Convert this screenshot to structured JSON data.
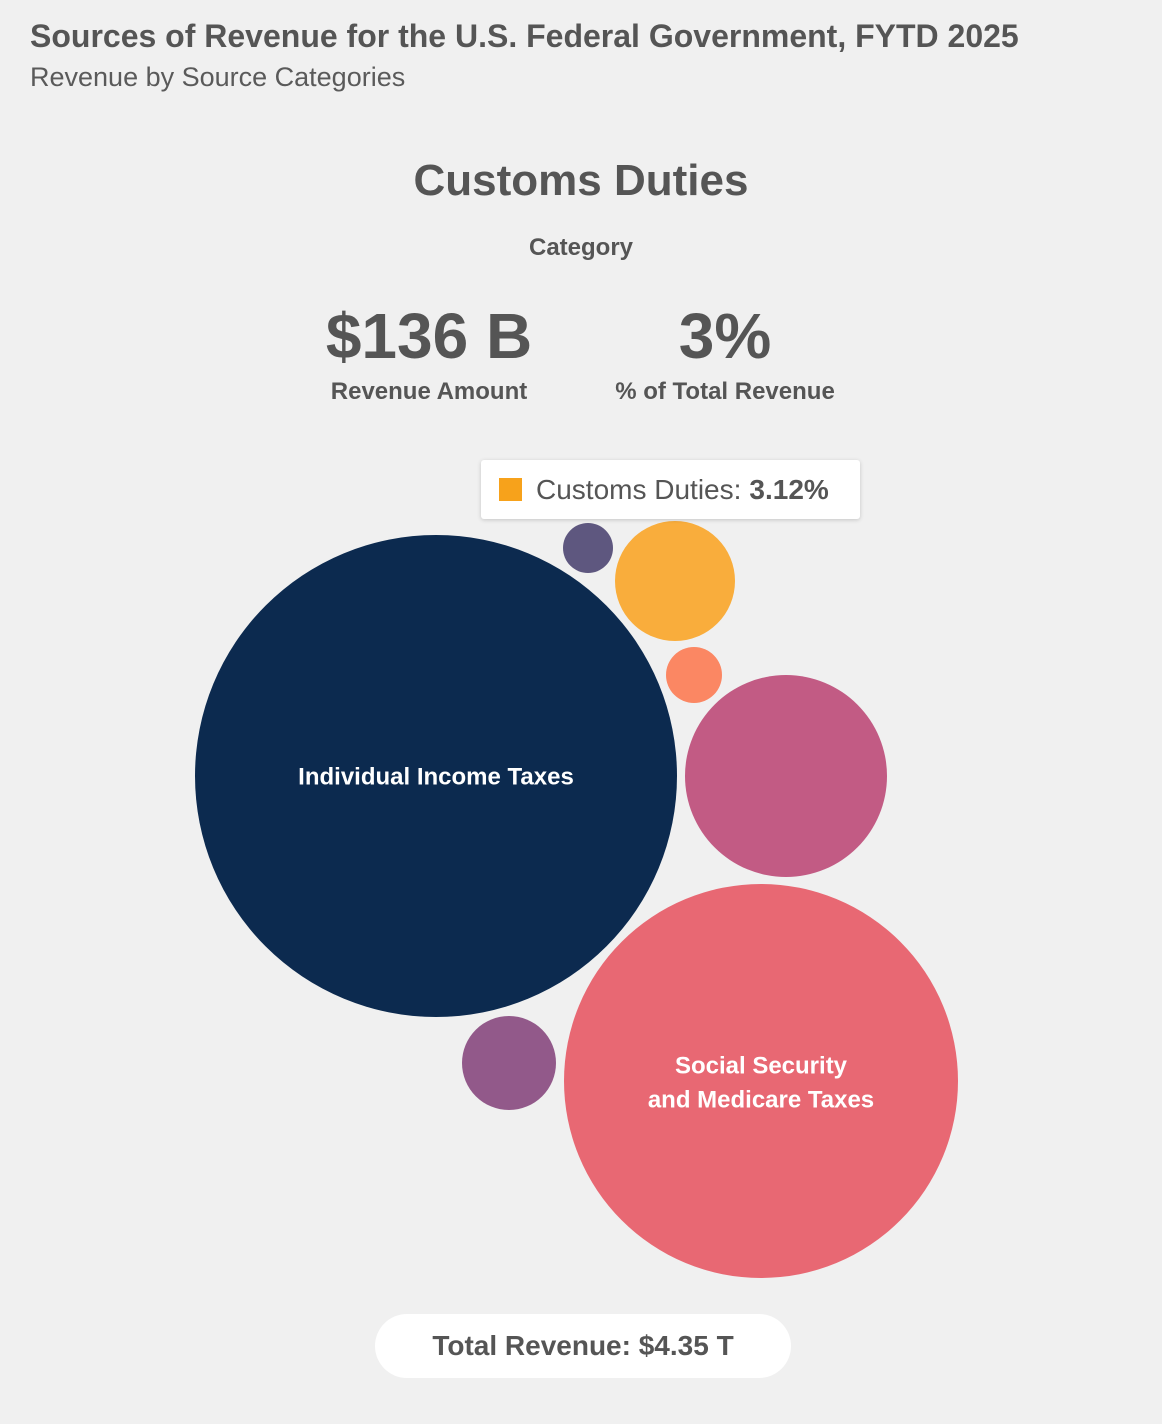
{
  "header": {
    "title": "Sources of Revenue for the U.S. Federal Government, FYTD 2025",
    "subtitle": "Revenue by Source Categories"
  },
  "detail": {
    "name": "Customs Duties",
    "type": "Category",
    "amount": "$136 B",
    "amount_label": "Revenue Amount",
    "percent": "3%",
    "percent_label": "% of Total Revenue"
  },
  "tooltip": {
    "label": "Customs Duties:",
    "value": "3.12%",
    "swatch_color": "#f7a21b"
  },
  "footer": {
    "total_label": "Total Revenue: $4.35 T"
  },
  "chart_data": {
    "type": "bubble",
    "bubbles": [
      {
        "category": "Individual Income Taxes",
        "label_lines": [
          "Individual Income Taxes"
        ],
        "color": "#0c2a4f"
      },
      {
        "category": "Social Security and Medicare Taxes",
        "label_lines": [
          "Social Security",
          "and Medicare Taxes"
        ],
        "color": "#e86873"
      },
      {
        "category": "",
        "label_lines": [],
        "color": "#c25b84"
      },
      {
        "category": "Customs Duties",
        "label_lines": [],
        "color": "#f9ad3c",
        "share_pct": 3.12,
        "amount_billion": 136
      },
      {
        "category": "",
        "label_lines": [],
        "color": "#92598a"
      },
      {
        "category": "",
        "label_lines": [],
        "color": "#fb8763"
      },
      {
        "category": "",
        "label_lines": [],
        "color": "#5e577f"
      }
    ],
    "total": "$4.35 T"
  }
}
